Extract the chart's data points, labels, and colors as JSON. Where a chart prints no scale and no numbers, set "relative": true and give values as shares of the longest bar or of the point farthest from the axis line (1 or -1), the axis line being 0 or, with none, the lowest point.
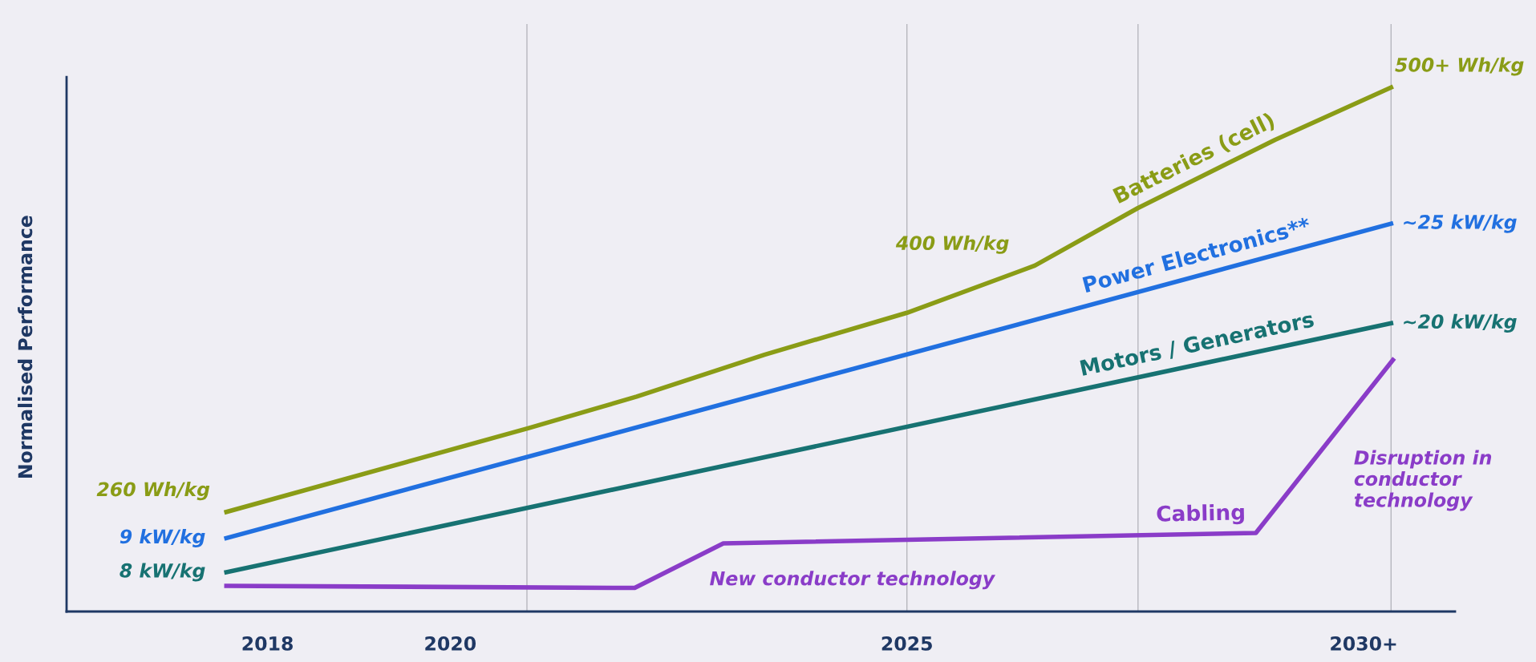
{
  "chart_data": {
    "type": "line",
    "relative": true,
    "ylabel": "Normalised Performance",
    "xlim": [
      2015.8,
      2031.0
    ],
    "xticks": [
      2018,
      2020,
      2025,
      {
        "value": 2030,
        "label": "2030+"
      }
    ],
    "grid": false,
    "legend": false,
    "marker": "none",
    "line_style": "solid",
    "series": [
      {
        "name": "Batteries (cell)",
        "color": "#8a9c16",
        "x": [
          2017.55,
          2020.86,
          2022.04,
          2023.44,
          2025,
          2026.4,
          2027.53,
          2029.03,
          2030.3
        ],
        "values": [
          0.19,
          0.35,
          0.41,
          0.49,
          0.57,
          0.66,
          0.77,
          0.9,
          1.0
        ]
      },
      {
        "name": "Power Electronics**",
        "color": "#2170e0",
        "x": [
          2017.55,
          2030.3
        ],
        "values": [
          0.14,
          0.74
        ]
      },
      {
        "name": "Motors / Generators",
        "color": "#177272",
        "x": [
          2017.55,
          2030.3
        ],
        "values": [
          0.075,
          0.55
        ]
      },
      {
        "name": "Cabling",
        "color": "#8a3cc8",
        "x": [
          2017.55,
          2022.02,
          2022.99,
          2028.82,
          2030.32
        ],
        "values": [
          0.049,
          0.045,
          0.13,
          0.15,
          0.48
        ]
      }
    ],
    "ref_lines": [
      {
        "axis": "x",
        "value": 2020.84,
        "color": "#b0b0b8"
      },
      {
        "axis": "x",
        "value": 2025,
        "color": "#b0b0b8"
      },
      {
        "axis": "x",
        "value": 2027.53,
        "color": "#b0b0b8"
      },
      {
        "axis": "x",
        "value": 2030.3,
        "color": "#b0b0b8"
      }
    ],
    "annotations": [
      "260 Wh/kg",
      "9 kW/kg",
      "8 kW/kg",
      "400 Wh/kg",
      "500+ Wh/kg",
      "~25 kW/kg",
      "~20 kW/kg",
      "New conductor technology",
      "Disruption in\nconductor\ntechnology"
    ]
  }
}
